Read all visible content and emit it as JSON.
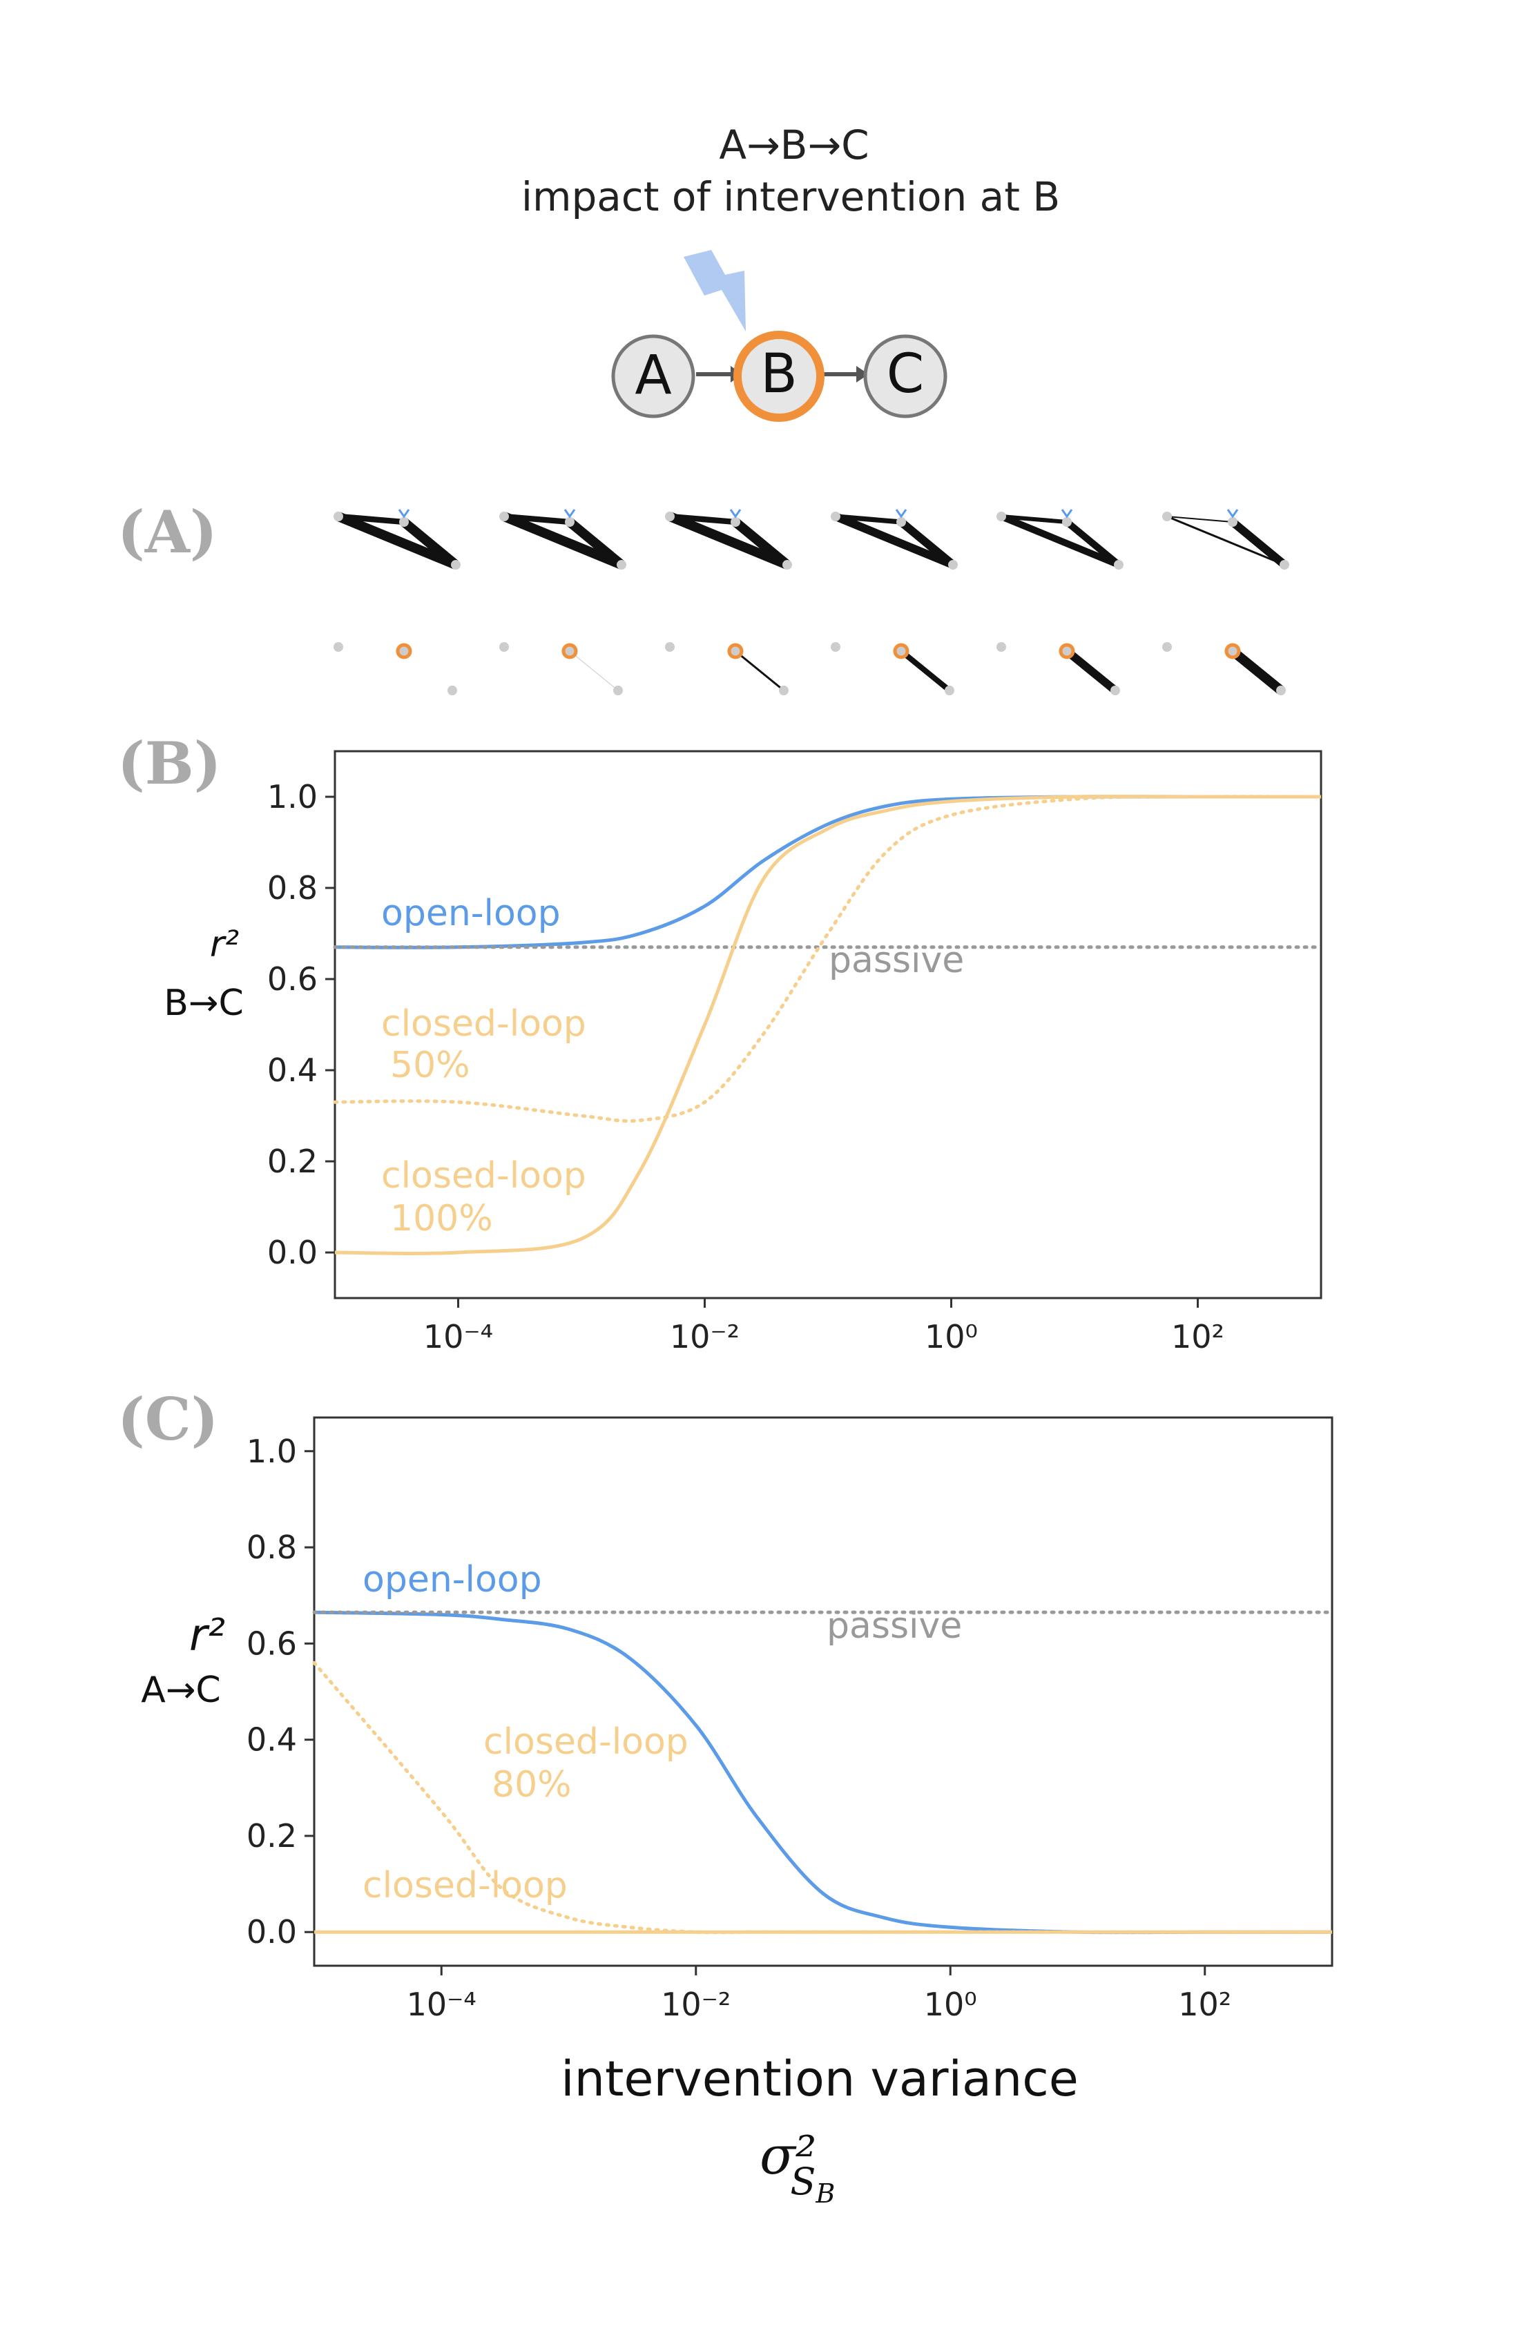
{
  "header": {
    "title_line1": "A→B→C",
    "title_line2": "impact of intervention at B",
    "nodes": [
      "A",
      "B",
      "C"
    ],
    "intervened_node": "B",
    "icons": [
      "lightning-bolt-icon"
    ]
  },
  "panel_letters": {
    "a": "(A)",
    "b": "(B)",
    "c": "(C)"
  },
  "colors": {
    "open_loop": "#5b9be8",
    "closed_loop": "#f7cf8c",
    "passive": "#999999",
    "intervention_node": "#f0903a",
    "bolt": "#a9c4f0",
    "edge": "#111111"
  },
  "chart_data": [
    {
      "id": "B",
      "type": "line",
      "xscale": "log",
      "xlim": [
        1e-05,
        1000
      ],
      "ylim": [
        -0.1,
        1.1
      ],
      "xticks": [
        "10⁻⁴",
        "10⁻²",
        "10⁰",
        "10²"
      ],
      "xtick_values": [
        0.0001,
        0.01,
        1,
        100
      ],
      "yticks": [
        "0.0",
        "0.2",
        "0.4",
        "0.6",
        "0.8",
        "1.0"
      ],
      "ytick_values": [
        0,
        0.2,
        0.4,
        0.6,
        0.8,
        1.0
      ],
      "ylabel_line1": "r²",
      "ylabel_line2": "B→C",
      "x": [
        1e-05,
        0.0001,
        0.001,
        0.003,
        0.01,
        0.03,
        0.1,
        0.3,
        1,
        10,
        100,
        1000
      ],
      "series": [
        {
          "name": "open-loop",
          "style": "solid",
          "values": [
            0.67,
            0.67,
            0.68,
            0.7,
            0.76,
            0.86,
            0.94,
            0.98,
            0.995,
            1.0,
            1.0,
            1.0
          ]
        },
        {
          "name": "passive",
          "style": "dotted",
          "values": [
            0.67,
            0.67,
            0.67,
            0.67,
            0.67,
            0.67,
            0.67,
            0.67,
            0.67,
            0.67,
            0.67,
            0.67
          ]
        },
        {
          "name": "closed-loop 50%",
          "style": "dotted",
          "values": [
            0.33,
            0.33,
            0.3,
            0.29,
            0.33,
            0.48,
            0.7,
            0.88,
            0.96,
            0.995,
            1.0,
            1.0
          ]
        },
        {
          "name": "closed-loop 100%",
          "style": "solid",
          "values": [
            0.0,
            0.0,
            0.03,
            0.18,
            0.5,
            0.82,
            0.93,
            0.97,
            0.99,
            1.0,
            1.0,
            1.0
          ]
        }
      ],
      "annotations": [
        {
          "text": "open-loop",
          "color_key": "open_loop"
        },
        {
          "text": "passive",
          "color_key": "passive"
        },
        {
          "text": "closed-loop",
          "color_key": "closed_loop"
        },
        {
          "text": "50%",
          "color_key": "closed_loop"
        },
        {
          "text": "closed-loop",
          "color_key": "closed_loop"
        },
        {
          "text": "100%",
          "color_key": "closed_loop"
        }
      ]
    },
    {
      "id": "C",
      "type": "line",
      "xscale": "log",
      "xlim": [
        1e-05,
        1000
      ],
      "ylim": [
        -0.07,
        1.07
      ],
      "xticks": [
        "10⁻⁴",
        "10⁻²",
        "10⁰",
        "10²"
      ],
      "xtick_values": [
        0.0001,
        0.01,
        1,
        100
      ],
      "yticks": [
        "0.0",
        "0.2",
        "0.4",
        "0.6",
        "0.8",
        "1.0"
      ],
      "ytick_values": [
        0,
        0.2,
        0.4,
        0.6,
        0.8,
        1.0
      ],
      "ylabel_line1": "r²",
      "ylabel_line2": "A→C",
      "xlabel": "intervention variance",
      "xlabel_symbol": "σ²",
      "xlabel_symbol_sub": "S",
      "xlabel_symbol_subsub": "B",
      "x": [
        1e-05,
        0.0001,
        0.0003,
        0.001,
        0.003,
        0.01,
        0.03,
        0.1,
        0.3,
        1,
        10,
        100,
        1000
      ],
      "series": [
        {
          "name": "open-loop",
          "style": "solid",
          "values": [
            0.665,
            0.66,
            0.65,
            0.63,
            0.57,
            0.43,
            0.24,
            0.08,
            0.03,
            0.01,
            0.0,
            0.0,
            0.0
          ]
        },
        {
          "name": "passive",
          "style": "dotted",
          "values": [
            0.665,
            0.665,
            0.665,
            0.665,
            0.665,
            0.665,
            0.665,
            0.665,
            0.665,
            0.665,
            0.665,
            0.665,
            0.665
          ]
        },
        {
          "name": "closed-loop 80%",
          "style": "dotted",
          "values": [
            0.56,
            0.25,
            0.09,
            0.03,
            0.01,
            0.0,
            0.0,
            0.0,
            0.0,
            0.0,
            0.0,
            0.0,
            0.0
          ]
        },
        {
          "name": "closed-loop",
          "style": "solid",
          "values": [
            0.0,
            0.0,
            0.0,
            0.0,
            0.0,
            0.0,
            0.0,
            0.0,
            0.0,
            0.0,
            0.0,
            0.0,
            0.0
          ]
        }
      ],
      "annotations": [
        {
          "text": "open-loop",
          "color_key": "open_loop"
        },
        {
          "text": "passive",
          "color_key": "passive"
        },
        {
          "text": "closed-loop",
          "color_key": "closed_loop"
        },
        {
          "text": "80%",
          "color_key": "closed_loop"
        },
        {
          "text": "closed-loop",
          "color_key": "closed_loop"
        }
      ]
    }
  ]
}
